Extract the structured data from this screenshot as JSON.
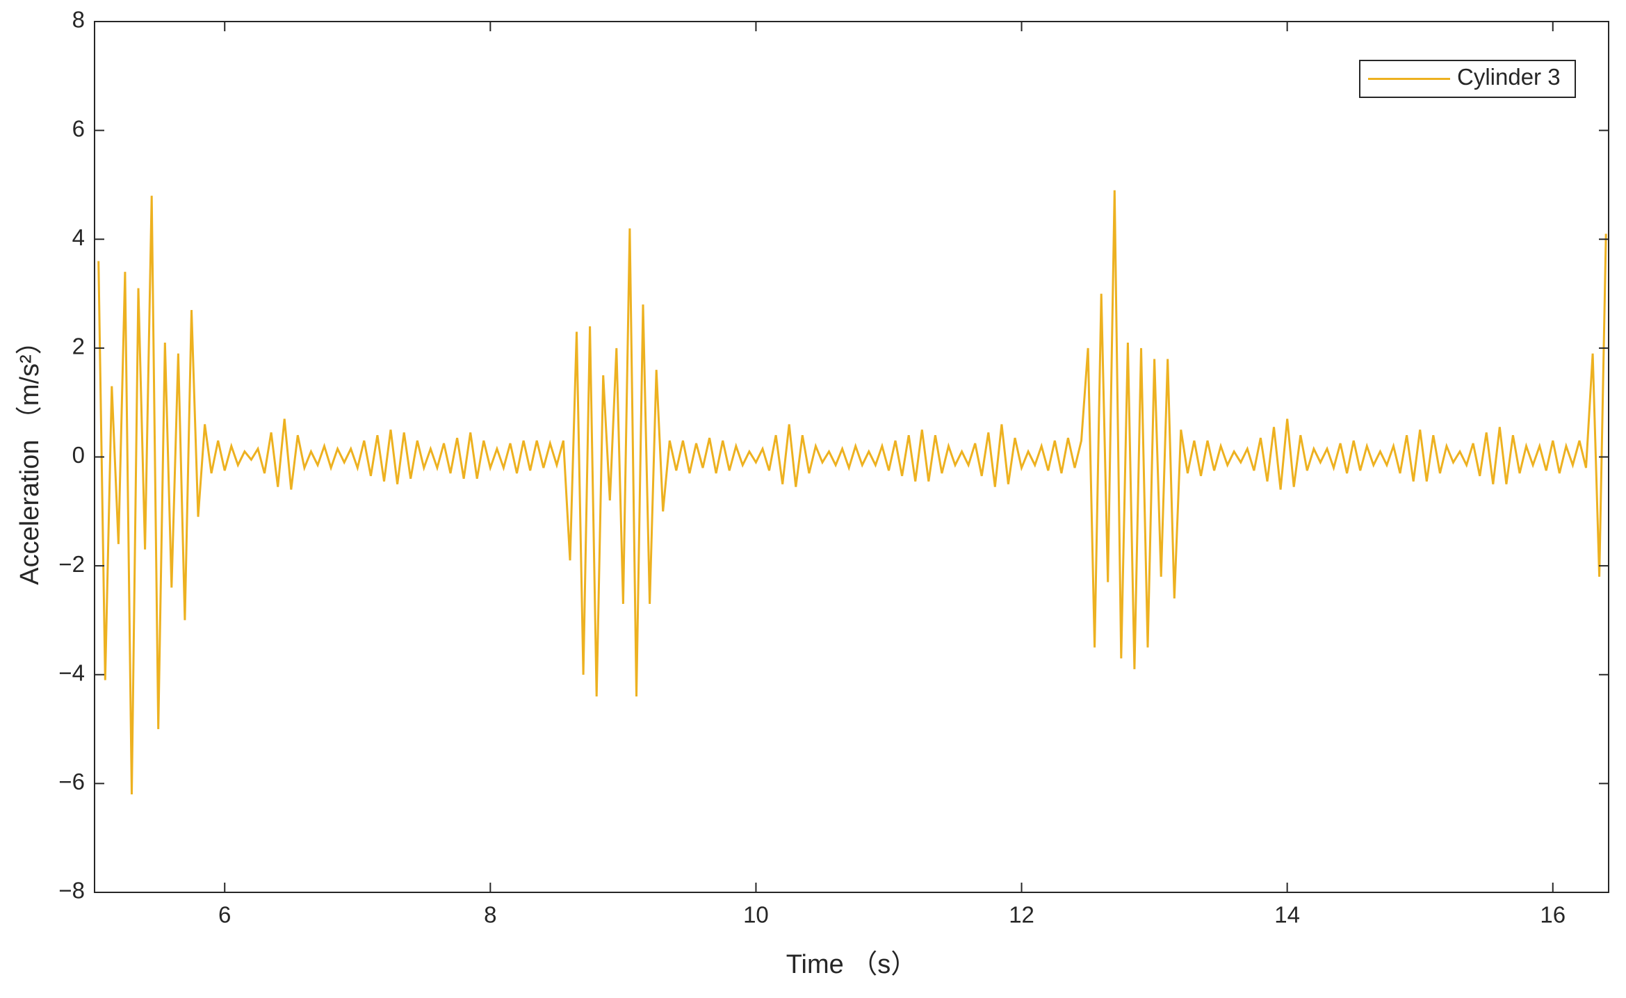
{
  "chart_data": {
    "type": "line",
    "xlabel": "Time （s）",
    "ylabel": "Acceleration （m/s²）",
    "xlim": [
      5.02,
      16.42
    ],
    "ylim": [
      -8,
      8
    ],
    "xticks": [
      6,
      8,
      10,
      12,
      14,
      16
    ],
    "yticks": [
      {
        "value": -8,
        "label": "−8"
      },
      {
        "value": -6,
        "label": "−6"
      },
      {
        "value": -4,
        "label": "−4"
      },
      {
        "value": -2,
        "label": "−2"
      },
      0,
      2,
      4,
      6,
      8
    ],
    "legend": "top-right",
    "grid": false,
    "x": [
      5.05,
      5.1,
      5.15,
      5.2,
      5.25,
      5.3,
      5.35,
      5.4,
      5.45,
      5.5,
      5.55,
      5.6,
      5.65,
      5.7,
      5.75,
      5.8,
      5.85,
      5.9,
      5.95,
      6.0,
      6.05,
      6.1,
      6.15,
      6.2,
      6.25,
      6.3,
      6.35,
      6.4,
      6.45,
      6.5,
      6.55,
      6.6,
      6.65,
      6.7,
      6.75,
      6.8,
      6.85,
      6.9,
      6.95,
      7.0,
      7.05,
      7.1,
      7.15,
      7.2,
      7.25,
      7.3,
      7.35,
      7.4,
      7.45,
      7.5,
      7.55,
      7.6,
      7.65,
      7.7,
      7.75,
      7.8,
      7.85,
      7.9,
      7.95,
      8.0,
      8.05,
      8.1,
      8.15,
      8.2,
      8.25,
      8.3,
      8.35,
      8.4,
      8.45,
      8.5,
      8.55,
      8.6,
      8.65,
      8.7,
      8.75,
      8.8,
      8.85,
      8.9,
      8.95,
      9.0,
      9.05,
      9.1,
      9.15,
      9.2,
      9.25,
      9.3,
      9.35,
      9.4,
      9.45,
      9.5,
      9.55,
      9.6,
      9.65,
      9.7,
      9.75,
      9.8,
      9.85,
      9.9,
      9.95,
      10.0,
      10.05,
      10.1,
      10.15,
      10.2,
      10.25,
      10.3,
      10.35,
      10.4,
      10.45,
      10.5,
      10.55,
      10.6,
      10.65,
      10.7,
      10.75,
      10.8,
      10.85,
      10.9,
      10.95,
      11.0,
      11.05,
      11.1,
      11.15,
      11.2,
      11.25,
      11.3,
      11.35,
      11.4,
      11.45,
      11.5,
      11.55,
      11.6,
      11.65,
      11.7,
      11.75,
      11.8,
      11.85,
      11.9,
      11.95,
      12.0,
      12.05,
      12.1,
      12.15,
      12.2,
      12.25,
      12.3,
      12.35,
      12.4,
      12.45,
      12.5,
      12.55,
      12.6,
      12.65,
      12.7,
      12.75,
      12.8,
      12.85,
      12.9,
      12.95,
      13.0,
      13.05,
      13.1,
      13.15,
      13.2,
      13.25,
      13.3,
      13.35,
      13.4,
      13.45,
      13.5,
      13.55,
      13.6,
      13.65,
      13.7,
      13.75,
      13.8,
      13.85,
      13.9,
      13.95,
      14.0,
      14.05,
      14.1,
      14.15,
      14.2,
      14.25,
      14.3,
      14.35,
      14.4,
      14.45,
      14.5,
      14.55,
      14.6,
      14.65,
      14.7,
      14.75,
      14.8,
      14.85,
      14.9,
      14.95,
      15.0,
      15.05,
      15.1,
      15.15,
      15.2,
      15.25,
      15.3,
      15.35,
      15.4,
      15.45,
      15.5,
      15.55,
      15.6,
      15.65,
      15.7,
      15.75,
      15.8,
      15.85,
      15.9,
      15.95,
      16.0,
      16.05,
      16.1,
      16.15,
      16.2,
      16.25,
      16.3,
      16.35,
      16.4
    ],
    "series": [
      {
        "name": "Cylinder 3",
        "color": "#EDB120",
        "values": [
          3.6,
          -4.1,
          1.3,
          -1.6,
          3.4,
          -6.2,
          3.1,
          -1.7,
          4.8,
          -5.0,
          2.1,
          -2.4,
          1.9,
          -3.0,
          2.7,
          -1.1,
          0.6,
          -0.3,
          0.3,
          -0.25,
          0.2,
          -0.15,
          0.1,
          -0.05,
          0.15,
          -0.3,
          0.45,
          -0.55,
          0.7,
          -0.6,
          0.4,
          -0.2,
          0.1,
          -0.15,
          0.2,
          -0.2,
          0.15,
          -0.1,
          0.15,
          -0.2,
          0.3,
          -0.35,
          0.4,
          -0.45,
          0.5,
          -0.5,
          0.45,
          -0.4,
          0.3,
          -0.2,
          0.15,
          -0.2,
          0.25,
          -0.3,
          0.35,
          -0.4,
          0.45,
          -0.4,
          0.3,
          -0.2,
          0.15,
          -0.2,
          0.25,
          -0.3,
          0.3,
          -0.25,
          0.3,
          -0.2,
          0.25,
          -0.15,
          0.3,
          -1.9,
          2.3,
          -4.0,
          2.4,
          -4.4,
          1.5,
          -0.8,
          2.0,
          -2.7,
          4.2,
          -4.4,
          2.8,
          -2.7,
          1.6,
          -1.0,
          0.3,
          -0.25,
          0.3,
          -0.3,
          0.25,
          -0.2,
          0.35,
          -0.3,
          0.3,
          -0.25,
          0.2,
          -0.15,
          0.1,
          -0.1,
          0.15,
          -0.25,
          0.4,
          -0.5,
          0.6,
          -0.55,
          0.4,
          -0.3,
          0.2,
          -0.1,
          0.1,
          -0.15,
          0.15,
          -0.2,
          0.2,
          -0.15,
          0.1,
          -0.15,
          0.2,
          -0.25,
          0.3,
          -0.35,
          0.4,
          -0.45,
          0.5,
          -0.45,
          0.4,
          -0.3,
          0.2,
          -0.15,
          0.1,
          -0.15,
          0.25,
          -0.35,
          0.45,
          -0.55,
          0.6,
          -0.5,
          0.35,
          -0.2,
          0.1,
          -0.15,
          0.2,
          -0.25,
          0.3,
          -0.3,
          0.35,
          -0.2,
          0.3,
          2.0,
          -3.5,
          3.0,
          -2.3,
          4.9,
          -3.7,
          2.1,
          -3.9,
          2.0,
          -3.5,
          1.8,
          -2.2,
          1.8,
          -2.6,
          0.5,
          -0.3,
          0.3,
          -0.35,
          0.3,
          -0.25,
          0.2,
          -0.15,
          0.1,
          -0.1,
          0.15,
          -0.25,
          0.35,
          -0.45,
          0.55,
          -0.6,
          0.7,
          -0.55,
          0.4,
          -0.25,
          0.15,
          -0.1,
          0.15,
          -0.2,
          0.25,
          -0.3,
          0.3,
          -0.25,
          0.2,
          -0.15,
          0.1,
          -0.15,
          0.2,
          -0.3,
          0.4,
          -0.45,
          0.5,
          -0.45,
          0.4,
          -0.3,
          0.2,
          -0.1,
          0.1,
          -0.15,
          0.25,
          -0.35,
          0.45,
          -0.5,
          0.55,
          -0.5,
          0.4,
          -0.3,
          0.2,
          -0.15,
          0.2,
          -0.25,
          0.3,
          -0.3,
          0.2,
          -0.15,
          0.3,
          -0.2,
          1.9,
          -2.2,
          4.1
        ]
      }
    ]
  }
}
